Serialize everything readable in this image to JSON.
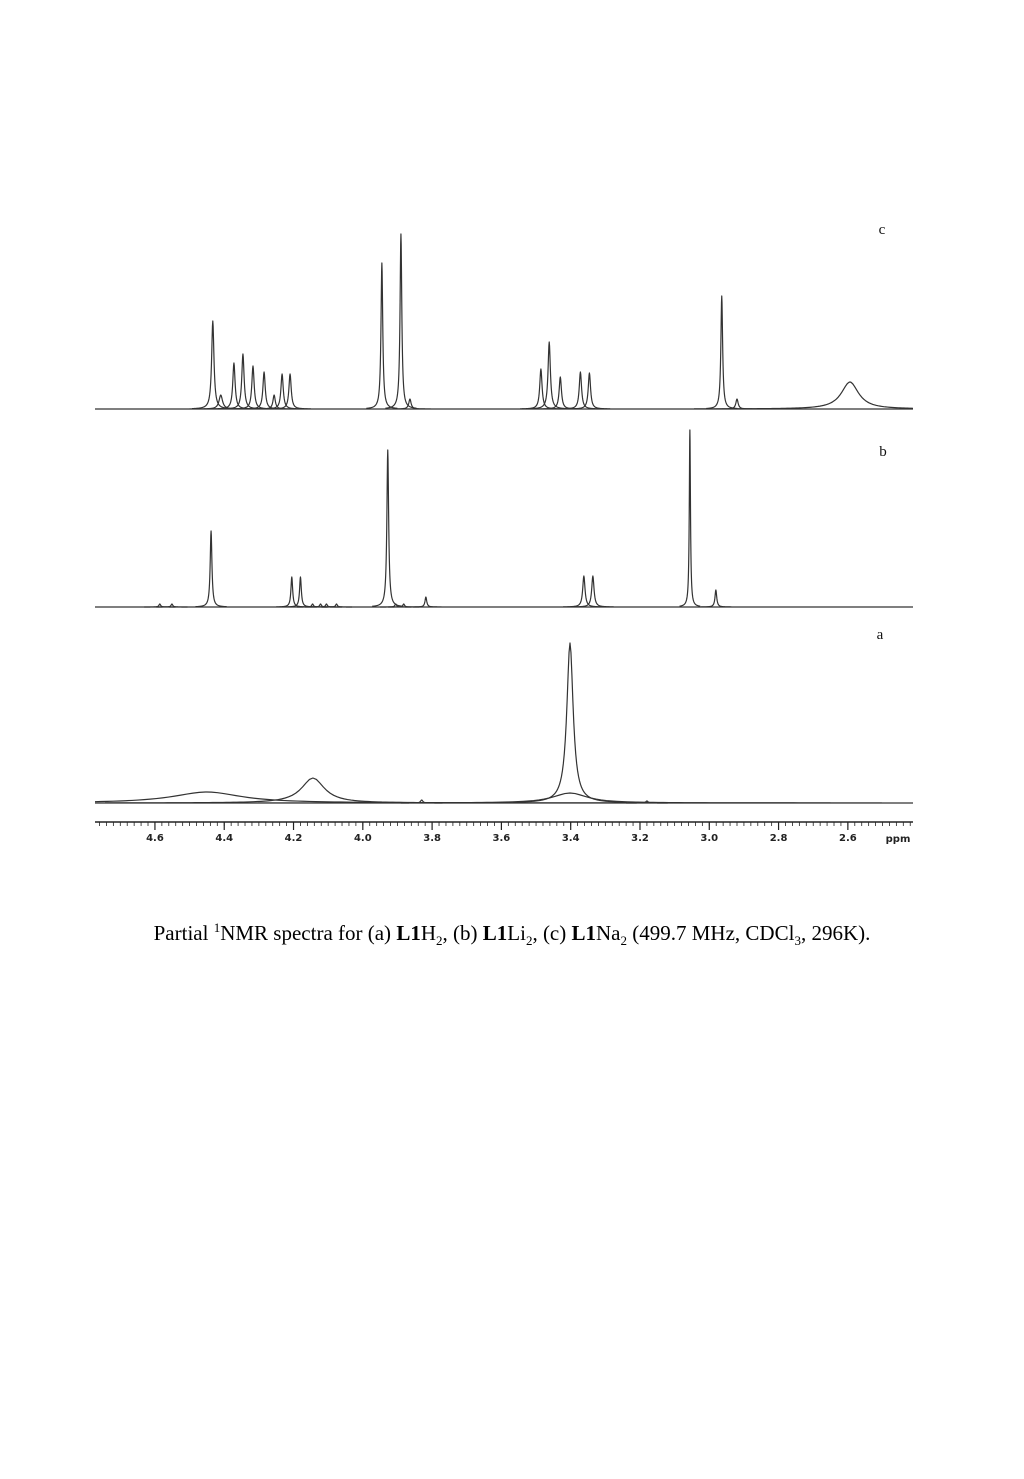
{
  "figure": {
    "xlim": [
      4.773,
      2.412
    ],
    "xticks": [
      4.6,
      4.4,
      4.2,
      {
        "value": 4.0,
        "label": "4.0"
      },
      3.8,
      3.6,
      3.4,
      3.2,
      {
        "value": 3.0,
        "label": "3.0"
      },
      2.8,
      2.6
    ],
    "xlabel": "ppm",
    "spectra": [
      {
        "label": "c",
        "peaks": [
          {
            "ppm": 4.433,
            "height": 88,
            "hwhm": 0.004
          },
          {
            "ppm": 4.41,
            "height": 14,
            "hwhm": 0.006
          },
          {
            "ppm": 4.372,
            "height": 46,
            "hwhm": 0.004
          },
          {
            "ppm": 4.346,
            "height": 55,
            "hwhm": 0.004
          },
          {
            "ppm": 4.317,
            "height": 43,
            "hwhm": 0.004
          },
          {
            "ppm": 4.285,
            "height": 37,
            "hwhm": 0.004
          },
          {
            "ppm": 4.256,
            "height": 14,
            "hwhm": 0.004
          },
          {
            "ppm": 4.233,
            "height": 35,
            "hwhm": 0.004
          },
          {
            "ppm": 4.21,
            "height": 35,
            "hwhm": 0.004
          },
          {
            "ppm": 3.945,
            "height": 146,
            "hwhm": 0.003
          },
          {
            "ppm": 3.89,
            "height": 175,
            "hwhm": 0.003
          },
          {
            "ppm": 3.864,
            "height": 10,
            "hwhm": 0.004
          },
          {
            "ppm": 3.486,
            "height": 40,
            "hwhm": 0.004
          },
          {
            "ppm": 3.462,
            "height": 67,
            "hwhm": 0.004
          },
          {
            "ppm": 3.43,
            "height": 32,
            "hwhm": 0.004
          },
          {
            "ppm": 3.372,
            "height": 37,
            "hwhm": 0.004
          },
          {
            "ppm": 3.346,
            "height": 36,
            "hwhm": 0.004
          },
          {
            "ppm": 2.964,
            "height": 113,
            "hwhm": 0.003
          },
          {
            "ppm": 2.92,
            "height": 10,
            "hwhm": 0.004
          },
          {
            "ppm": 2.594,
            "height": 27,
            "hwhm": 0.03
          }
        ]
      },
      {
        "label": "b",
        "peaks": [
          {
            "ppm": 4.586,
            "height": 3,
            "hwhm": 0.003
          },
          {
            "ppm": 4.551,
            "height": 3,
            "hwhm": 0.003
          },
          {
            "ppm": 4.438,
            "height": 76,
            "hwhm": 0.003
          },
          {
            "ppm": 4.205,
            "height": 30,
            "hwhm": 0.003
          },
          {
            "ppm": 4.18,
            "height": 30,
            "hwhm": 0.003
          },
          {
            "ppm": 4.145,
            "height": 3,
            "hwhm": 0.003
          },
          {
            "ppm": 4.122,
            "height": 3,
            "hwhm": 0.003
          },
          {
            "ppm": 4.105,
            "height": 3,
            "hwhm": 0.003
          },
          {
            "ppm": 4.076,
            "height": 3,
            "hwhm": 0.003
          },
          {
            "ppm": 3.928,
            "height": 157,
            "hwhm": 0.003
          },
          {
            "ppm": 3.905,
            "height": 3,
            "hwhm": 0.003
          },
          {
            "ppm": 3.882,
            "height": 3,
            "hwhm": 0.003
          },
          {
            "ppm": 3.818,
            "height": 10,
            "hwhm": 0.003
          },
          {
            "ppm": 3.362,
            "height": 31,
            "hwhm": 0.004
          },
          {
            "ppm": 3.336,
            "height": 31,
            "hwhm": 0.004
          },
          {
            "ppm": 3.056,
            "height": 177,
            "hwhm": 0.002
          },
          {
            "ppm": 2.981,
            "height": 17,
            "hwhm": 0.003
          }
        ]
      },
      {
        "label": "a",
        "peaks": [
          {
            "ppm": 4.45,
            "height": 11,
            "hwhm": 0.12
          },
          {
            "ppm": 4.144,
            "height": 25,
            "hwhm": 0.04
          },
          {
            "ppm": 3.83,
            "height": 3,
            "hwhm": 0.004
          },
          {
            "ppm": 3.402,
            "height": 160,
            "hwhm": 0.011
          },
          {
            "ppm": 3.402,
            "height": 10,
            "hwhm": 0.06
          },
          {
            "ppm": 3.18,
            "height": 2,
            "hwhm": 0.004
          }
        ]
      }
    ]
  },
  "caption": [
    {
      "text": "Partial ",
      "style": "plain"
    },
    {
      "text": "1",
      "style": "sup"
    },
    {
      "text": "NMR spectra for (a) ",
      "style": "plain"
    },
    {
      "text": "L1",
      "style": "bold"
    },
    {
      "text": "H",
      "style": "plain"
    },
    {
      "text": "2",
      "style": "sub"
    },
    {
      "text": ", (b) ",
      "style": "plain"
    },
    {
      "text": "L1",
      "style": "bold"
    },
    {
      "text": "Li",
      "style": "plain"
    },
    {
      "text": "2",
      "style": "sub"
    },
    {
      "text": ", (c) ",
      "style": "plain"
    },
    {
      "text": "L1",
      "style": "bold"
    },
    {
      "text": "Na",
      "style": "plain"
    },
    {
      "text": "2",
      "style": "sub"
    },
    {
      "text": " (499.7 MHz, CDCl",
      "style": "plain"
    },
    {
      "text": "3",
      "style": "sub"
    },
    {
      "text": ", 296K).",
      "style": "plain"
    }
  ]
}
